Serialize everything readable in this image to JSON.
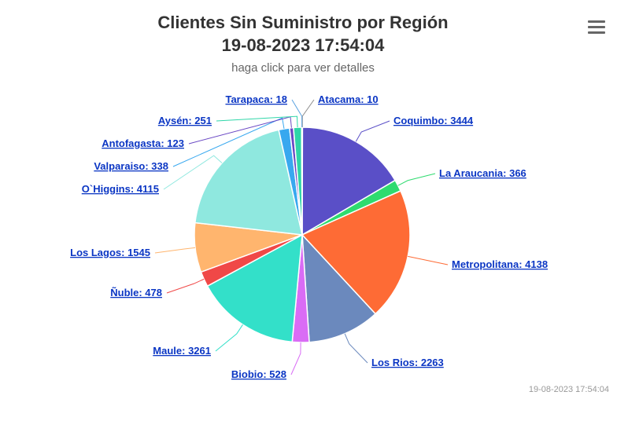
{
  "header": {
    "title_line1": "Clientes Sin Suministro por Región",
    "title_line2": "19-08-2023 17:54:04",
    "subtitle": "haga click para ver detalles"
  },
  "menu": {
    "icon": "hamburger-menu-icon"
  },
  "footer": {
    "timestamp": "19-08-2023 17:54:04"
  },
  "chart_data": {
    "type": "pie",
    "title": "Clientes Sin Suministro por Región",
    "subtitle": "haga click para ver detalles",
    "slices": [
      {
        "name": "Atacama",
        "value": 10,
        "color": "#8d8d8d"
      },
      {
        "name": "Coquimbo",
        "value": 3444,
        "color": "#5a4fc7"
      },
      {
        "name": "La Araucania",
        "value": 366,
        "color": "#2edb6f"
      },
      {
        "name": "Metropolitana",
        "value": 4138,
        "color": "#fe6b35"
      },
      {
        "name": "Los Rios",
        "value": 2263,
        "color": "#6b89bd"
      },
      {
        "name": "Biobio",
        "value": 528,
        "color": "#d96cf5"
      },
      {
        "name": "Maule",
        "value": 3261,
        "color": "#33e0c9"
      },
      {
        "name": "Ñuble",
        "value": 478,
        "color": "#f04847"
      },
      {
        "name": "Los Lagos",
        "value": 1545,
        "color": "#ffb56e"
      },
      {
        "name": "O`Higgins",
        "value": 4115,
        "color": "#8fe8df"
      },
      {
        "name": "Valparaiso",
        "value": 338,
        "color": "#38a8ef"
      },
      {
        "name": "Antofagasta",
        "value": 123,
        "color": "#6a48c4"
      },
      {
        "name": "Aysén",
        "value": 251,
        "color": "#2ed6a8"
      },
      {
        "name": "Tarapaca",
        "value": 18,
        "color": "#5aa2e0"
      }
    ]
  }
}
